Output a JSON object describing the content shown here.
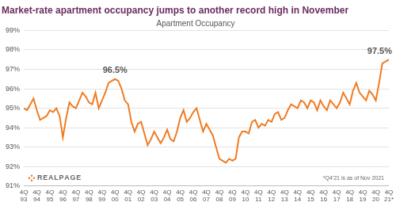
{
  "chart_data": {
    "type": "line",
    "title": "Market-rate apartment occupancy jumps to another record high in November",
    "subtitle": "Apartment Occupancy",
    "footnote": "*Q4'21 is as of Nov 2021",
    "logo": "REALPAGE",
    "color": "#f07b21",
    "grid": true,
    "categories": [
      "4Q 93",
      null,
      null,
      null,
      "4Q 94",
      null,
      null,
      null,
      "4Q 95",
      null,
      null,
      null,
      "4Q 96",
      null,
      null,
      null,
      "4Q 97",
      null,
      null,
      null,
      "4Q 98",
      null,
      null,
      null,
      "4Q 99",
      null,
      null,
      null,
      "4Q 00",
      null,
      null,
      null,
      "4Q 01",
      null,
      null,
      null,
      "4Q 02",
      null,
      null,
      null,
      "4Q 03",
      null,
      null,
      null,
      "4Q 04",
      null,
      null,
      null,
      "4Q 05",
      null,
      null,
      null,
      "4Q 06",
      null,
      null,
      null,
      "4Q 07",
      null,
      null,
      null,
      "4Q 08",
      null,
      null,
      null,
      "4Q 09",
      null,
      null,
      null,
      "4Q 10",
      null,
      null,
      null,
      "4Q 11",
      null,
      null,
      null,
      "4Q 12",
      null,
      null,
      null,
      "4Q 13",
      null,
      null,
      null,
      "4Q 14",
      null,
      null,
      null,
      "4Q 15",
      null,
      null,
      null,
      "4Q 16",
      null,
      null,
      null,
      "4Q 17",
      null,
      null,
      null,
      "4Q 18",
      null,
      null,
      null,
      "4Q 19",
      null,
      null,
      null,
      "4Q 20",
      null,
      null,
      null,
      "4Q 21*"
    ],
    "values": [
      95.0,
      94.9,
      95.2,
      95.5,
      94.9,
      94.4,
      94.5,
      94.6,
      94.9,
      94.8,
      95.0,
      94.6,
      93.5,
      94.5,
      95.3,
      95.1,
      95.0,
      95.4,
      95.8,
      95.6,
      95.3,
      95.2,
      95.8,
      95.0,
      95.4,
      95.8,
      96.3,
      96.4,
      96.5,
      96.4,
      96.0,
      95.4,
      95.2,
      94.3,
      93.8,
      94.2,
      94.3,
      93.7,
      93.1,
      93.4,
      93.8,
      93.5,
      93.2,
      93.5,
      93.9,
      93.4,
      93.3,
      93.8,
      94.5,
      94.9,
      94.3,
      94.5,
      94.8,
      95.0,
      94.4,
      93.8,
      94.2,
      93.9,
      93.6,
      93.0,
      92.4,
      92.3,
      92.2,
      92.4,
      92.3,
      92.4,
      93.5,
      93.8,
      93.8,
      93.7,
      94.3,
      94.4,
      94.0,
      94.2,
      94.1,
      94.4,
      94.3,
      94.7,
      94.8,
      94.4,
      94.5,
      94.9,
      95.2,
      95.1,
      95.0,
      95.4,
      95.3,
      95.0,
      95.4,
      95.3,
      94.9,
      95.4,
      95.1,
      94.9,
      95.4,
      95.2,
      95.0,
      95.3,
      95.8,
      95.5,
      95.2,
      95.9,
      96.3,
      95.8,
      95.6,
      95.4,
      95.9,
      95.7,
      95.4,
      96.3,
      97.3,
      97.4,
      97.5
    ],
    "ylim": [
      91,
      99
    ],
    "yticks": [
      {
        "value": 91,
        "label": "91%"
      },
      {
        "value": 92,
        "label": "92%"
      },
      {
        "value": 93,
        "label": "93%"
      },
      {
        "value": 94,
        "label": "94%"
      },
      {
        "value": 95,
        "label": "95%"
      },
      {
        "value": 96,
        "label": "96%"
      },
      {
        "value": 97,
        "label": "97%"
      },
      {
        "value": 98,
        "label": "98%"
      },
      {
        "value": 99,
        "label": "99%"
      }
    ],
    "annotations": [
      {
        "label": "96.5%",
        "x": "4Q 00",
        "y": 96.5
      },
      {
        "label": "97.5%",
        "x": "4Q 21*",
        "y": 97.5
      }
    ]
  }
}
